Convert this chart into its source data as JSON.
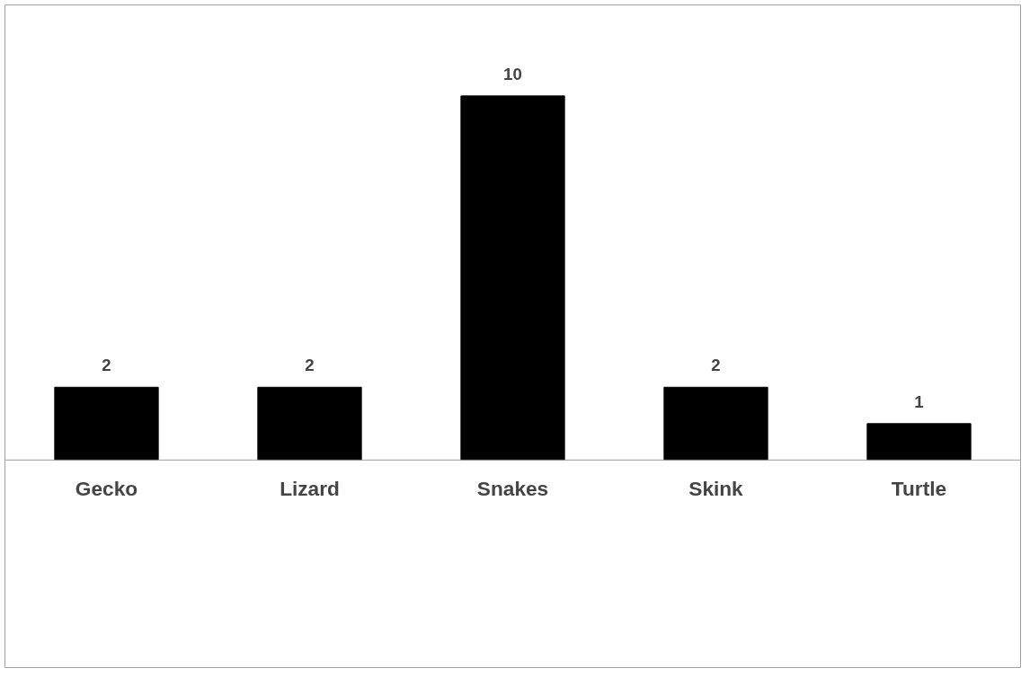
{
  "chart_data": {
    "type": "bar",
    "categories": [
      "Gecko",
      "Lizard",
      "Snakes",
      "Skink",
      "Turtle"
    ],
    "values": [
      2,
      2,
      10,
      2,
      1
    ],
    "color": "#000000",
    "data_labels": true
  }
}
